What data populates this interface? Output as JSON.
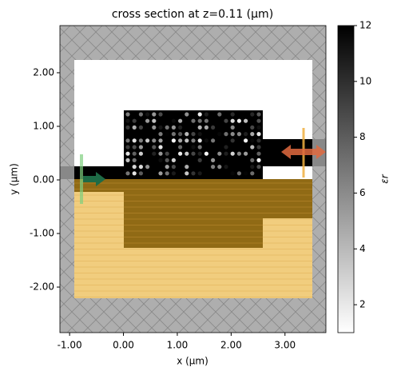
{
  "chart_data": {
    "type": "structure",
    "title": "cross section at z=0.11 (μm)",
    "x_label": "x (μm)",
    "y_label": "y (μm)",
    "xlim": [
      -1.18,
      3.76
    ],
    "ylim": [
      -2.85,
      2.88
    ],
    "xticks": [
      {
        "value": -1,
        "label": "-1.00"
      },
      {
        "value": 0,
        "label": "0.00"
      },
      {
        "value": 1,
        "label": "1.00"
      },
      {
        "value": 2,
        "label": "2.00"
      },
      {
        "value": 3,
        "label": "3.00"
      }
    ],
    "yticks": [
      {
        "value": -2,
        "label": "-2.00"
      },
      {
        "value": -1,
        "label": "-1.00"
      },
      {
        "value": 0,
        "label": "0.00"
      },
      {
        "value": 1,
        "label": "1.00"
      },
      {
        "value": 2,
        "label": "2.00"
      }
    ],
    "colorbar": {
      "label": "εr",
      "lim": [
        1,
        12
      ],
      "ticks": [
        2,
        4,
        6,
        8,
        10,
        12
      ]
    }
  }
}
